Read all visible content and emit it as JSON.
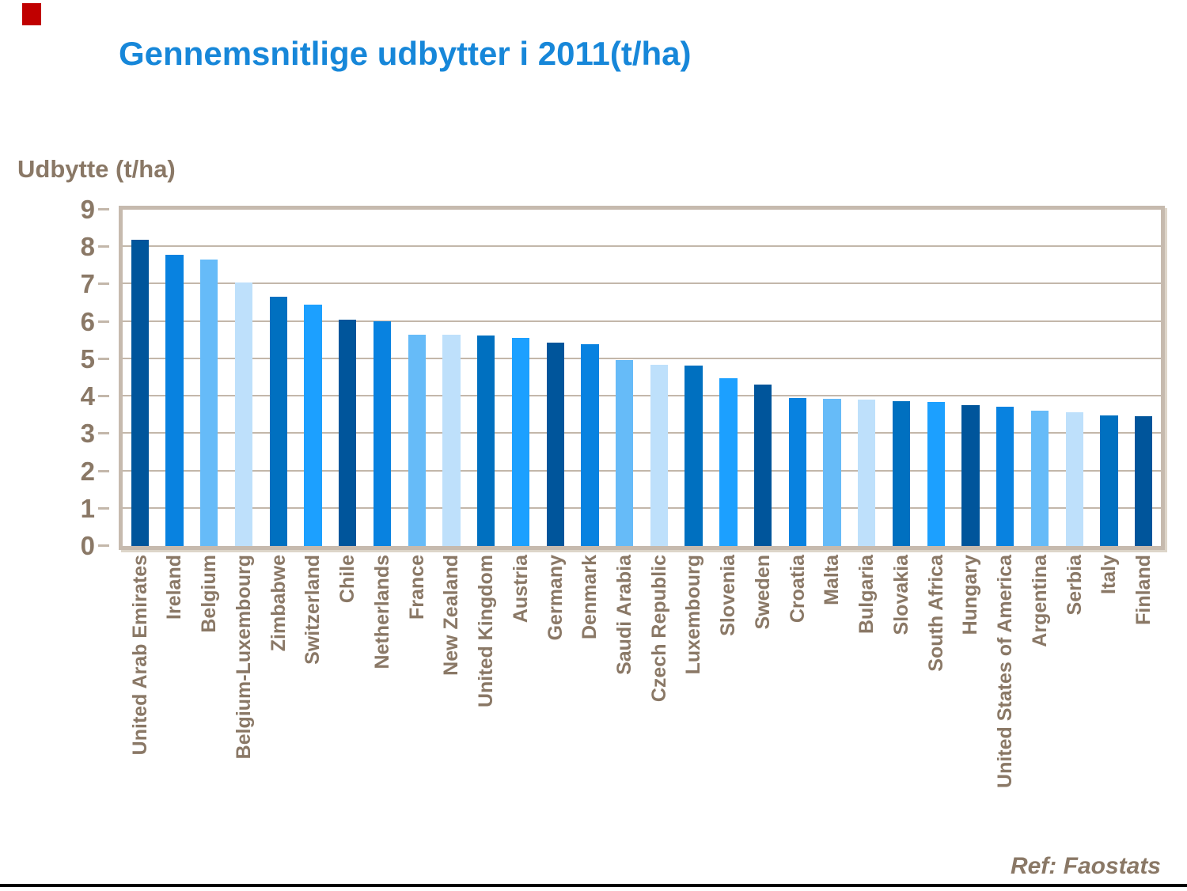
{
  "slide": {
    "title": "Gennemsnitlige udbytter i 2011(t/ha)",
    "ref_note": "Ref: Faostats"
  },
  "chart_data": {
    "type": "bar",
    "title": "Gennemsnitlige udbytter i 2011(t/ha)",
    "ylabel": "Udbytte (t/ha)",
    "xlabel": "",
    "ylim": [
      0,
      9
    ],
    "yticks": [
      0,
      1,
      2,
      3,
      4,
      5,
      6,
      7,
      8,
      9
    ],
    "grid": true,
    "legend": false,
    "categories": [
      "United Arab Emirates",
      "Ireland",
      "Belgium",
      "Belgium-Luxembourg",
      "Zimbabwe",
      "Switzerland",
      "Chile",
      "Netherlands",
      "France",
      "New Zealand",
      "United Kingdom",
      "Austria",
      "Germany",
      "Denmark",
      "Saudi Arabia",
      "Czech Republic",
      "Luxembourg",
      "Slovenia",
      "Sweden",
      "Croatia",
      "Malta",
      "Bulgaria",
      "Slovakia",
      "South Africa",
      "Hungary",
      "United States of America",
      "Argentina",
      "Serbia",
      "Italy",
      "Finland"
    ],
    "values": [
      8.2,
      7.8,
      7.66,
      7.05,
      6.67,
      6.46,
      6.06,
      6.02,
      5.66,
      5.65,
      5.63,
      5.56,
      5.45,
      5.39,
      4.97,
      4.85,
      4.82,
      4.5,
      4.33,
      3.97,
      3.93,
      3.91,
      3.87,
      3.86,
      3.77,
      3.72,
      3.62,
      3.57,
      3.49,
      3.47
    ],
    "bar_colors": [
      "#00559b",
      "#0882e0",
      "#66bbf8",
      "#bee0fb",
      "#0070c0",
      "#1ca0ff",
      "#00559b",
      "#0882e0",
      "#66bbf8",
      "#bee0fb",
      "#0070c0",
      "#1ca0ff",
      "#00559b",
      "#0882e0",
      "#66bbf8",
      "#bee0fb",
      "#0070c0",
      "#1ca0ff",
      "#00559b",
      "#0882e0",
      "#66bbf8",
      "#bee0fb",
      "#0070c0",
      "#1ca0ff",
      "#00559b",
      "#0882e0",
      "#66bbf8",
      "#bee0fb",
      "#0070c0",
      "#00559b"
    ],
    "palette_cycle": [
      "#00559b",
      "#0882e0",
      "#66bbf8",
      "#bee0fb",
      "#0070c0",
      "#1ca0ff"
    ]
  },
  "style_colors": {
    "title_color": "#1787d9",
    "axis_text_color": "#8a7866",
    "grid_color": "#c3b7aa",
    "frame_color": "#c6baae",
    "marker_color": "#c00000",
    "footer_line_color": "#000000"
  }
}
